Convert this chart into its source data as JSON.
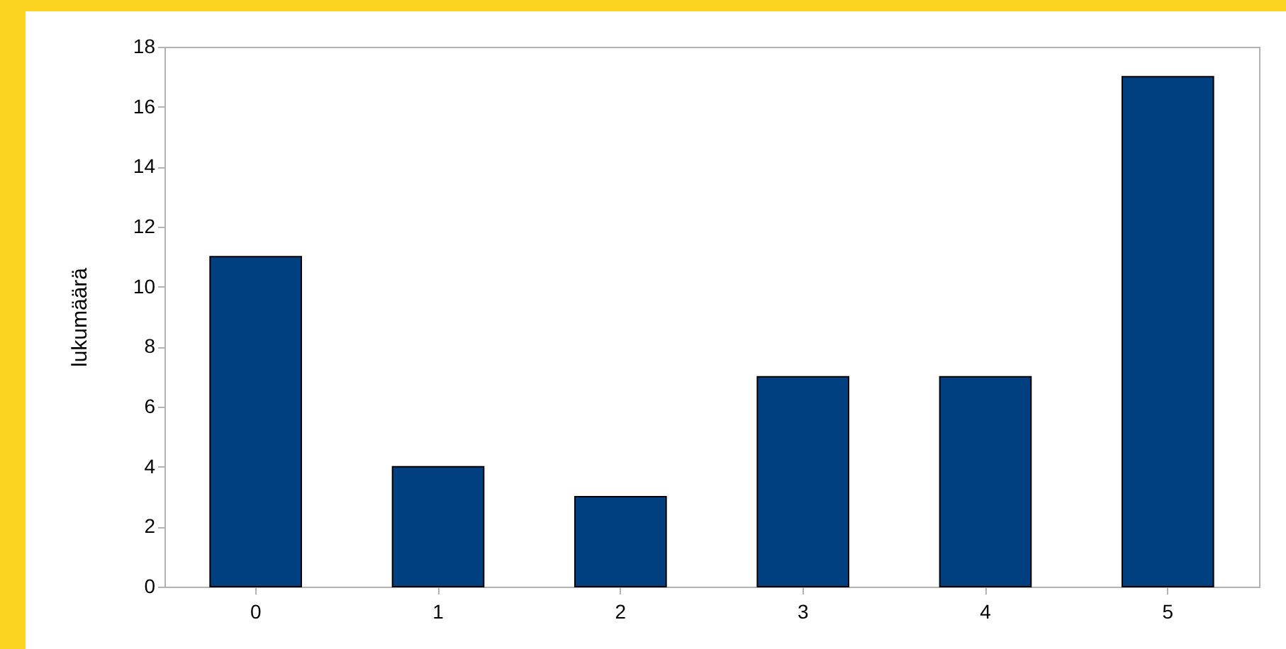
{
  "chart_data": {
    "type": "bar",
    "ylabel": "lukumäärä",
    "categories": [
      "0",
      "1",
      "2",
      "3",
      "4",
      "5"
    ],
    "values": [
      11,
      4,
      3,
      7,
      7,
      17
    ],
    "color": "#004080",
    "ylim": [
      0,
      18
    ],
    "yticks": [
      0,
      2,
      4,
      6,
      8,
      10,
      12,
      14,
      16,
      18
    ],
    "grid": false
  }
}
